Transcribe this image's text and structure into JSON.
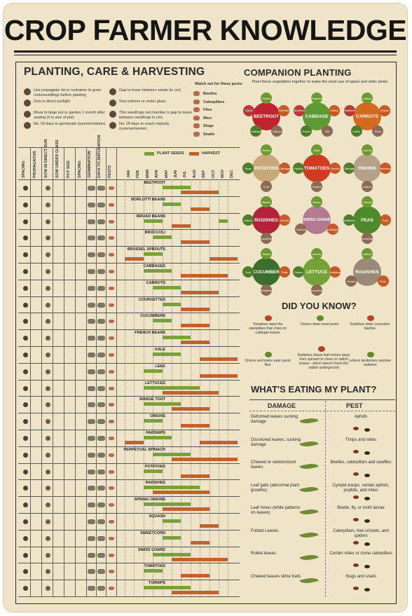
{
  "title": "CROP FARMER KNOWLEDGE",
  "chart_title": "PLANTING, CARE & HARVESTING",
  "companion_title": "COMPANION PLANTING",
  "companion_note": "Plant these vegetables together to make the most use of space and deter pests.",
  "legend": [
    {
      "text": "Use propagator kit or rootrainer to grow roots/seedlings before planting",
      "icon": "propagator-icon"
    },
    {
      "text": "Sow in direct sunlight",
      "icon": "sun-icon"
    },
    {
      "text": "Move to large pot or garden 1 month after sowing (# is size of pot)",
      "icon": "pot-icon"
    },
    {
      "text": "No. Of days to germinate (summer/winter)",
      "icon": "germinate-icon"
    },
    {
      "text": "Gap to leave between seeds (in cm)",
      "icon": "spacing-icon"
    },
    {
      "text": "Sow indoors or under glass",
      "icon": "greenhouse-icon"
    },
    {
      "text": "Thin seedlings out (number is gap to leave between seedlings in cm)",
      "icon": "thin-icon"
    },
    {
      "text": "No. Of days to reach maturity (summer/winter)",
      "icon": "maturity-icon"
    }
  ],
  "pests_title": "Watch out for these pests:",
  "pests": [
    "Beetles",
    "Caterpillars",
    "Flies",
    "Mice",
    "Slugs",
    "Snails"
  ],
  "columns": [
    "SPACING",
    "PROPAGATOR",
    "SOW IN DIRECT SUN",
    "SOW UNDER GLASS",
    "POT SIZE",
    "SPACING",
    "GERMINATION",
    "DAYS TO MATURATION",
    "PESTS"
  ],
  "months": [
    "JAN",
    "FEB",
    "MAR",
    "APR",
    "MAY",
    "JUN",
    "JUL",
    "AUG",
    "SEP",
    "OCT",
    "NOV",
    "DEC"
  ],
  "key_plant": "PLANT SEEDS",
  "key_harvest": "HARVEST",
  "crops": [
    {
      "name": "BEETROOT",
      "plant": [
        [
          4,
          7
        ]
      ],
      "harvest": [
        [
          6,
          10
        ]
      ]
    },
    {
      "name": "BORLOTTI BEANS",
      "plant": [
        [
          4,
          6
        ]
      ],
      "harvest": [
        [
          7,
          9
        ]
      ]
    },
    {
      "name": "BROAD BEANS",
      "plant": [
        [
          2,
          4
        ],
        [
          10,
          11
        ]
      ],
      "harvest": [
        [
          5,
          7
        ]
      ]
    },
    {
      "name": "BROCCOLI",
      "plant": [
        [
          3,
          5
        ]
      ],
      "harvest": [
        [
          6,
          9
        ]
      ]
    },
    {
      "name": "BRUSSEL SPROUTS",
      "plant": [
        [
          2,
          4
        ]
      ],
      "harvest": [
        [
          0,
          2
        ],
        [
          9,
          12
        ]
      ]
    },
    {
      "name": "CABBAGES",
      "plant": [
        [
          2,
          5
        ]
      ],
      "harvest": [
        [
          6,
          11
        ]
      ]
    },
    {
      "name": "CARROTS",
      "plant": [
        [
          3,
          6
        ]
      ],
      "harvest": [
        [
          6,
          10
        ]
      ]
    },
    {
      "name": "COURGETTES",
      "plant": [
        [
          4,
          6
        ]
      ],
      "harvest": [
        [
          6,
          9
        ]
      ]
    },
    {
      "name": "CUCUMBERS",
      "plant": [
        [
          3,
          5
        ]
      ],
      "harvest": [
        [
          6,
          9
        ]
      ]
    },
    {
      "name": "FRENCH BEANS",
      "plant": [
        [
          4,
          7
        ]
      ],
      "harvest": [
        [
          6,
          9
        ]
      ]
    },
    {
      "name": "KALE",
      "plant": [
        [
          3,
          6
        ]
      ],
      "harvest": [
        [
          8,
          12
        ]
      ]
    },
    {
      "name": "LEEK",
      "plant": [
        [
          2,
          4
        ]
      ],
      "harvest": [
        [
          8,
          12
        ]
      ]
    },
    {
      "name": "LETTUCES",
      "plant": [
        [
          2,
          8
        ]
      ],
      "harvest": [
        [
          4,
          10
        ]
      ]
    },
    {
      "name": "MANGE TOUT",
      "plant": [
        [
          2,
          6
        ]
      ],
      "harvest": [
        [
          5,
          9
        ]
      ]
    },
    {
      "name": "ONIONS",
      "plant": [
        [
          2,
          4
        ]
      ],
      "harvest": [
        [
          6,
          9
        ]
      ]
    },
    {
      "name": "PARSNIPS",
      "plant": [
        [
          2,
          5
        ]
      ],
      "harvest": [
        [
          0,
          2
        ],
        [
          8,
          12
        ]
      ]
    },
    {
      "name": "PERPETUAL SPINACH",
      "plant": [
        [
          3,
          7
        ]
      ],
      "harvest": [
        [
          5,
          12
        ]
      ]
    },
    {
      "name": "POTATOES",
      "plant": [
        [
          2,
          4
        ]
      ],
      "harvest": [
        [
          6,
          9
        ]
      ]
    },
    {
      "name": "RADISHES",
      "plant": [
        [
          2,
          8
        ]
      ],
      "harvest": [
        [
          3,
          9
        ]
      ]
    },
    {
      "name": "SPRING ONIONS",
      "plant": [
        [
          2,
          7
        ]
      ],
      "harvest": [
        [
          4,
          9
        ]
      ]
    },
    {
      "name": "SQUASH",
      "plant": [
        [
          4,
          6
        ]
      ],
      "harvest": [
        [
          8,
          10
        ]
      ]
    },
    {
      "name": "SWEETCORN",
      "plant": [
        [
          4,
          6
        ]
      ],
      "harvest": [
        [
          7,
          9
        ]
      ]
    },
    {
      "name": "SWISS CHARD",
      "plant": [
        [
          3,
          7
        ]
      ],
      "harvest": [
        [
          5,
          11
        ]
      ]
    },
    {
      "name": "TOMATOES",
      "plant": [
        [
          2,
          4
        ]
      ],
      "harvest": [
        [
          6,
          9
        ]
      ]
    },
    {
      "name": "TURNIPS",
      "plant": [
        [
          2,
          7
        ]
      ],
      "harvest": [
        [
          5,
          10
        ]
      ]
    }
  ],
  "companions": [
    {
      "name": "BEETROOT",
      "color": "#c0242f",
      "sats": [
        "Onions",
        "Kohlrabi",
        "Lettuce",
        "Cabbage",
        "Garlic"
      ]
    },
    {
      "name": "CABBAGE",
      "color": "#5d9a34",
      "sats": [
        "Potatoes",
        "Celery",
        "Dill",
        "Onions",
        "Beetroot"
      ]
    },
    {
      "name": "CARROTS",
      "color": "#d46a1e",
      "sats": [
        "Lettuce",
        "Onions",
        "Peas",
        "Leeks",
        "Radishes"
      ]
    },
    {
      "name": "POTATOES",
      "color": "#c9a877",
      "sats": [
        "Beans",
        "Cabbage",
        "Corn",
        "Peas"
      ]
    },
    {
      "name": "TOMATOES",
      "color": "#d23b22",
      "sats": [
        "Basil",
        "Carrots",
        "Onions",
        "Parsley"
      ]
    },
    {
      "name": "ONIONS",
      "color": "#b7a08a",
      "sats": [
        "Carrots",
        "Beetroot",
        "Lettuce",
        "Cabbage"
      ]
    },
    {
      "name": "RADISHES",
      "color": "#b5233a",
      "sats": [
        "Beans",
        "Carrots",
        "Cucumber",
        "Lettuce"
      ]
    },
    {
      "name": "SWISS CHARD",
      "color": "#b37a92",
      "sats": [
        "Beans",
        "Cabbage",
        "Onions"
      ]
    },
    {
      "name": "PEAS",
      "color": "#4f8a2a",
      "sats": [
        "Carrots",
        "Corn",
        "Cucumber",
        "Radishes"
      ]
    },
    {
      "name": "CUCUMBER",
      "color": "#3c6e2c",
      "sats": [
        "Beans",
        "Peas",
        "Radishes",
        "Corn"
      ]
    },
    {
      "name": "LETTUCE",
      "color": "#74a236",
      "sats": [
        "Carrots",
        "Radishes",
        "Cucumber",
        "Onions"
      ]
    },
    {
      "name": "RADISHES",
      "color": "#9b8a76",
      "sats": [
        "Lettuce",
        "Peas",
        "Beans"
      ]
    }
  ],
  "did_you_know_title": "DID YOU KNOW?",
  "facts": [
    "Tomatoes repel the caterpillars that chew on cabbage leaves",
    "Onions deter most pests",
    "Radishes deter cucumber beetles",
    "Onions and leeks repel carrot flies",
    "Radishes draws leaf-miners away from spinach to chew on radish leaves - which doesn't harm the radish underground",
    "Lettuce tenderises summer radishes"
  ],
  "wem_title": "WHAT'S EATING MY PLANT?",
  "damage_head": "DAMAGE",
  "pest_head": "PEST",
  "damages": [
    {
      "damage": "Deformed leaves sucking damage",
      "pest": "Aphids"
    },
    {
      "damage": "Discolored leaves, sucking damage",
      "pest": "Thrips and mites"
    },
    {
      "damage": "Chewed or skeletonized leaves",
      "pest": "Beetles, caterpillars and sawflies"
    },
    {
      "damage": "Leaf galls (abnormal plant growths)",
      "pest": "Cynipid wasps, certain aphids, psyllids, and mites"
    },
    {
      "damage": "Leaf mines (white patterns on leaves)",
      "pest": "Beetle, fly, or moth larvae"
    },
    {
      "damage": "Folded Leaves",
      "pest": "Caterpillars, tree crickets, and spiders"
    },
    {
      "damage": "Rolled leaves",
      "pest": "Certain mites or some caterpillars"
    },
    {
      "damage": "Chewed leaves slime trails",
      "pest": "Slugs and snails"
    }
  ]
}
